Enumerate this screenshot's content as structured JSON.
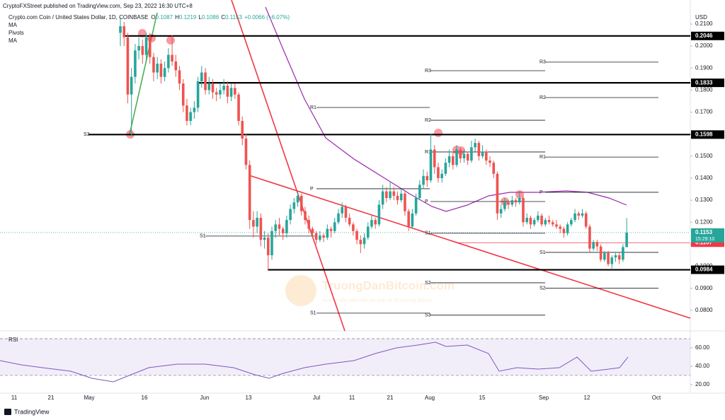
{
  "header": {
    "publisher": "CryptoFXStreet published on TradingView.com, Sep 23, 2022 16:30 UTC+8"
  },
  "chart_data": {
    "type": "candlestick",
    "symbol": "Crypto.com Coin / United States Dollar, 1D, COINBASE",
    "ohlc_prefixes": [
      "O",
      "H",
      "L",
      "C"
    ],
    "change": "+0.0066 (+6.07%)",
    "indicators": [
      "MA",
      "Pivots",
      "MA"
    ],
    "currency": "USD",
    "up_color": "#26a69a",
    "down_color": "#ef5350",
    "ylim": [
      0.0716,
      0.2161
    ],
    "yticks": [
      {
        "value": 0.21,
        "label": "0.2100"
      },
      {
        "value": 0.2,
        "label": "0.2000"
      },
      {
        "value": 0.19,
        "label": "0.1900"
      },
      {
        "value": 0.18,
        "label": "0.1800"
      },
      {
        "value": 0.17,
        "label": "0.1700"
      },
      {
        "value": 0.16,
        "label": "0.1600"
      },
      {
        "value": 0.15,
        "label": "0.1500"
      },
      {
        "value": 0.14,
        "label": "0.1400"
      },
      {
        "value": 0.13,
        "label": "0.1300"
      },
      {
        "value": 0.12,
        "label": "0.1200"
      },
      {
        "value": 0.11,
        "label": "0.1100"
      },
      {
        "value": 0.1,
        "label": "0.1000"
      },
      {
        "value": 0.09,
        "label": "0.0900"
      },
      {
        "value": 0.08,
        "label": "0.0800"
      }
    ],
    "xticks": [
      "11",
      "21",
      "May",
      "16",
      "Jun",
      "13",
      "Jul",
      "11",
      "21",
      "Aug",
      "15",
      "Sep",
      "12",
      "Oct"
    ],
    "ohlc": [
      [
        0.206,
        0.213,
        0.2,
        0.209
      ],
      [
        0.209,
        0.211,
        0.2,
        0.204
      ],
      [
        0.204,
        0.206,
        0.174,
        0.178
      ],
      [
        0.178,
        0.19,
        0.159,
        0.186
      ],
      [
        0.186,
        0.201,
        0.183,
        0.198
      ],
      [
        0.198,
        0.204,
        0.194,
        0.2
      ],
      [
        0.2,
        0.203,
        0.192,
        0.196
      ],
      [
        0.196,
        0.206,
        0.193,
        0.204
      ],
      [
        0.204,
        0.206,
        0.192,
        0.195
      ],
      [
        0.195,
        0.197,
        0.184,
        0.188
      ],
      [
        0.188,
        0.195,
        0.185,
        0.192
      ],
      [
        0.192,
        0.194,
        0.183,
        0.186
      ],
      [
        0.186,
        0.193,
        0.184,
        0.19
      ],
      [
        0.19,
        0.199,
        0.188,
        0.196
      ],
      [
        0.196,
        0.205,
        0.191,
        0.193
      ],
      [
        0.193,
        0.196,
        0.186,
        0.189
      ],
      [
        0.189,
        0.191,
        0.18,
        0.183
      ],
      [
        0.183,
        0.185,
        0.17,
        0.173
      ],
      [
        0.173,
        0.176,
        0.164,
        0.166
      ],
      [
        0.166,
        0.172,
        0.164,
        0.17
      ],
      [
        0.17,
        0.175,
        0.167,
        0.172
      ],
      [
        0.172,
        0.186,
        0.17,
        0.184
      ],
      [
        0.184,
        0.191,
        0.181,
        0.188
      ],
      [
        0.188,
        0.19,
        0.178,
        0.18
      ],
      [
        0.18,
        0.186,
        0.178,
        0.183
      ],
      [
        0.183,
        0.185,
        0.176,
        0.179
      ],
      [
        0.179,
        0.181,
        0.175,
        0.178
      ],
      [
        0.178,
        0.183,
        0.176,
        0.18
      ],
      [
        0.18,
        0.185,
        0.178,
        0.182
      ],
      [
        0.182,
        0.184,
        0.174,
        0.177
      ],
      [
        0.177,
        0.183,
        0.175,
        0.181
      ],
      [
        0.181,
        0.183,
        0.176,
        0.178
      ],
      [
        0.178,
        0.179,
        0.164,
        0.166
      ],
      [
        0.166,
        0.168,
        0.155,
        0.158
      ],
      [
        0.158,
        0.16,
        0.144,
        0.146
      ],
      [
        0.146,
        0.148,
        0.117,
        0.121
      ],
      [
        0.121,
        0.125,
        0.113,
        0.118
      ],
      [
        0.118,
        0.125,
        0.115,
        0.122
      ],
      [
        0.122,
        0.124,
        0.109,
        0.112
      ],
      [
        0.112,
        0.116,
        0.108,
        0.113
      ],
      [
        0.113,
        0.115,
        0.098,
        0.105
      ],
      [
        0.105,
        0.118,
        0.103,
        0.116
      ],
      [
        0.116,
        0.121,
        0.113,
        0.119
      ],
      [
        0.119,
        0.122,
        0.114,
        0.117
      ],
      [
        0.117,
        0.118,
        0.112,
        0.115
      ],
      [
        0.115,
        0.123,
        0.113,
        0.121
      ],
      [
        0.121,
        0.128,
        0.119,
        0.126
      ],
      [
        0.126,
        0.131,
        0.124,
        0.129
      ],
      [
        0.129,
        0.134,
        0.127,
        0.132
      ],
      [
        0.132,
        0.133,
        0.123,
        0.125
      ],
      [
        0.125,
        0.127,
        0.119,
        0.121
      ],
      [
        0.121,
        0.123,
        0.115,
        0.117
      ],
      [
        0.117,
        0.118,
        0.113,
        0.115
      ],
      [
        0.115,
        0.116,
        0.11,
        0.112
      ],
      [
        0.112,
        0.116,
        0.111,
        0.114
      ],
      [
        0.114,
        0.115,
        0.111,
        0.113
      ],
      [
        0.113,
        0.119,
        0.112,
        0.117
      ],
      [
        0.117,
        0.118,
        0.113,
        0.116
      ],
      [
        0.116,
        0.122,
        0.115,
        0.12
      ],
      [
        0.12,
        0.126,
        0.119,
        0.124
      ],
      [
        0.124,
        0.129,
        0.122,
        0.127
      ],
      [
        0.127,
        0.128,
        0.12,
        0.122
      ],
      [
        0.122,
        0.124,
        0.118,
        0.119
      ],
      [
        0.119,
        0.12,
        0.114,
        0.116
      ],
      [
        0.116,
        0.117,
        0.11,
        0.112
      ],
      [
        0.112,
        0.114,
        0.106,
        0.11
      ],
      [
        0.11,
        0.115,
        0.108,
        0.113
      ],
      [
        0.113,
        0.12,
        0.112,
        0.118
      ],
      [
        0.118,
        0.123,
        0.117,
        0.121
      ],
      [
        0.121,
        0.122,
        0.117,
        0.119
      ],
      [
        0.119,
        0.13,
        0.118,
        0.128
      ],
      [
        0.128,
        0.137,
        0.126,
        0.134
      ],
      [
        0.134,
        0.136,
        0.129,
        0.131
      ],
      [
        0.131,
        0.138,
        0.13,
        0.134
      ],
      [
        0.134,
        0.136,
        0.13,
        0.132
      ],
      [
        0.132,
        0.134,
        0.128,
        0.13
      ],
      [
        0.13,
        0.135,
        0.129,
        0.133
      ],
      [
        0.133,
        0.134,
        0.123,
        0.125
      ],
      [
        0.125,
        0.126,
        0.116,
        0.118
      ],
      [
        0.118,
        0.126,
        0.117,
        0.124
      ],
      [
        0.124,
        0.133,
        0.123,
        0.131
      ],
      [
        0.131,
        0.139,
        0.13,
        0.137
      ],
      [
        0.137,
        0.144,
        0.135,
        0.141
      ],
      [
        0.141,
        0.143,
        0.136,
        0.139
      ],
      [
        0.139,
        0.16,
        0.138,
        0.153
      ],
      [
        0.153,
        0.155,
        0.142,
        0.145
      ],
      [
        0.145,
        0.147,
        0.138,
        0.14
      ],
      [
        0.14,
        0.144,
        0.138,
        0.142
      ],
      [
        0.142,
        0.149,
        0.141,
        0.147
      ],
      [
        0.147,
        0.153,
        0.145,
        0.15
      ],
      [
        0.15,
        0.152,
        0.144,
        0.146
      ],
      [
        0.146,
        0.155,
        0.145,
        0.153
      ],
      [
        0.153,
        0.154,
        0.147,
        0.149
      ],
      [
        0.149,
        0.153,
        0.147,
        0.151
      ],
      [
        0.151,
        0.152,
        0.146,
        0.148
      ],
      [
        0.148,
        0.157,
        0.147,
        0.154
      ],
      [
        0.154,
        0.158,
        0.152,
        0.156
      ],
      [
        0.156,
        0.157,
        0.148,
        0.15
      ],
      [
        0.15,
        0.155,
        0.149,
        0.152
      ],
      [
        0.152,
        0.153,
        0.146,
        0.148
      ],
      [
        0.148,
        0.15,
        0.145,
        0.147
      ],
      [
        0.147,
        0.148,
        0.14,
        0.142
      ],
      [
        0.142,
        0.143,
        0.121,
        0.124
      ],
      [
        0.124,
        0.128,
        0.122,
        0.126
      ],
      [
        0.126,
        0.131,
        0.125,
        0.129
      ],
      [
        0.129,
        0.13,
        0.126,
        0.128
      ],
      [
        0.128,
        0.132,
        0.127,
        0.13
      ],
      [
        0.13,
        0.131,
        0.127,
        0.129
      ],
      [
        0.129,
        0.134,
        0.128,
        0.131
      ],
      [
        0.131,
        0.132,
        0.118,
        0.12
      ],
      [
        0.12,
        0.124,
        0.119,
        0.122
      ],
      [
        0.122,
        0.123,
        0.117,
        0.119
      ],
      [
        0.119,
        0.122,
        0.118,
        0.121
      ],
      [
        0.121,
        0.125,
        0.12,
        0.123
      ],
      [
        0.123,
        0.124,
        0.118,
        0.119
      ],
      [
        0.119,
        0.122,
        0.118,
        0.121
      ],
      [
        0.121,
        0.123,
        0.119,
        0.12
      ],
      [
        0.12,
        0.121,
        0.118,
        0.119
      ],
      [
        0.119,
        0.121,
        0.117,
        0.118
      ],
      [
        0.118,
        0.119,
        0.115,
        0.117
      ],
      [
        0.117,
        0.118,
        0.113,
        0.115
      ],
      [
        0.115,
        0.12,
        0.114,
        0.119
      ],
      [
        0.119,
        0.122,
        0.118,
        0.121
      ],
      [
        0.121,
        0.126,
        0.12,
        0.124
      ],
      [
        0.124,
        0.125,
        0.121,
        0.123
      ],
      [
        0.123,
        0.126,
        0.122,
        0.124
      ],
      [
        0.124,
        0.125,
        0.117,
        0.118
      ],
      [
        0.118,
        0.119,
        0.106,
        0.108
      ],
      [
        0.108,
        0.112,
        0.107,
        0.111
      ],
      [
        0.111,
        0.112,
        0.107,
        0.109
      ],
      [
        0.109,
        0.11,
        0.102,
        0.103
      ],
      [
        0.103,
        0.107,
        0.102,
        0.106
      ],
      [
        0.106,
        0.107,
        0.1,
        0.101
      ],
      [
        0.101,
        0.105,
        0.099,
        0.104
      ],
      [
        0.104,
        0.106,
        0.102,
        0.105
      ],
      [
        0.105,
        0.106,
        0.101,
        0.103
      ],
      [
        0.103,
        0.11,
        0.102,
        0.1087
      ],
      [
        0.1087,
        0.1219,
        0.1086,
        0.1153
      ]
    ],
    "levels": [
      {
        "value": 0.2046,
        "label": "0.2046"
      },
      {
        "value": 0.1833,
        "label": "0.1833"
      },
      {
        "value": 0.1598,
        "label": "0.1598"
      },
      {
        "value": 0.0984,
        "label": "0.0984"
      }
    ],
    "last_price": {
      "value": 0.1153,
      "label": "0.1153",
      "countdown": "15:29:10",
      "color": "#26a69a"
    },
    "ma_price": {
      "value": 0.1107,
      "label": "0.1107",
      "color": "#f23645"
    },
    "pivots": [
      [
        {
          "name": "S3",
          "value": 0.1599
        }
      ],
      [
        {
          "name": "S1",
          "value": 0.1137
        }
      ],
      [
        {
          "name": "R1",
          "value": 0.1721
        },
        {
          "name": "P",
          "value": 0.1352
        },
        {
          "name": "S1",
          "value": 0.0787
        }
      ],
      [
        {
          "name": "R3",
          "value": 0.1888
        },
        {
          "name": "R2",
          "value": 0.1663
        },
        {
          "name": "R1",
          "value": 0.1519
        },
        {
          "name": "P",
          "value": 0.1294
        },
        {
          "name": "S1",
          "value": 0.115
        },
        {
          "name": "S2",
          "value": 0.0925
        },
        {
          "name": "S3",
          "value": 0.0778
        }
      ],
      [
        {
          "name": "R3",
          "value": 0.1927
        },
        {
          "name": "R2",
          "value": 0.1766
        },
        {
          "name": "R1",
          "value": 0.1496
        },
        {
          "name": "P",
          "value": 0.1336
        },
        {
          "name": "S1",
          "value": 0.1063
        },
        {
          "name": "S2",
          "value": 0.09
        }
      ]
    ],
    "rsi": {
      "title": "RSI",
      "ylim": [
        11.5,
        76.9
      ],
      "yticks": [
        {
          "value": 60,
          "label": "60.00"
        },
        {
          "value": 40,
          "label": "40.00"
        },
        {
          "value": 20,
          "label": "20.00"
        }
      ],
      "band": [
        70,
        30
      ]
    }
  },
  "watermark": {
    "title": "TruongDanBitcoin.com",
    "subtitle": "Hướng dẫn kiếm tiền an toàn từ thị trường Bitcoin"
  },
  "footer": "TradingView"
}
